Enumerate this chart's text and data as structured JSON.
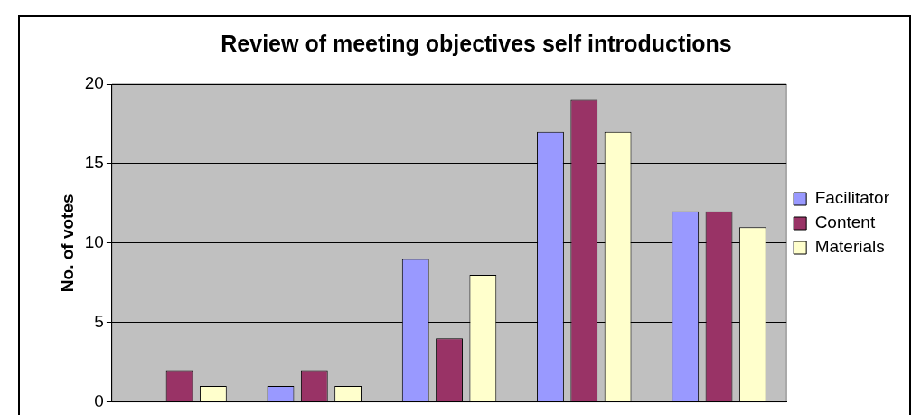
{
  "chart_data": {
    "type": "bar",
    "title": "Review of meeting objectives self introductions",
    "ylabel": "No. of votes",
    "categories": [
      null,
      null,
      null,
      null,
      null
    ],
    "series": [
      {
        "name": "Facilitator",
        "color": "#9999ff",
        "values": [
          0,
          1,
          9,
          17,
          12
        ]
      },
      {
        "name": "Content",
        "color": "#993366",
        "values": [
          2,
          2,
          4,
          19,
          12
        ]
      },
      {
        "name": "Materials",
        "color": "#ffffcc",
        "values": [
          1,
          1,
          8,
          17,
          11
        ]
      }
    ],
    "ylim": [
      0,
      20
    ],
    "yticks": [
      0,
      5,
      10,
      15,
      20
    ],
    "grid": "y",
    "legend": "right",
    "tick_labels": "y"
  }
}
